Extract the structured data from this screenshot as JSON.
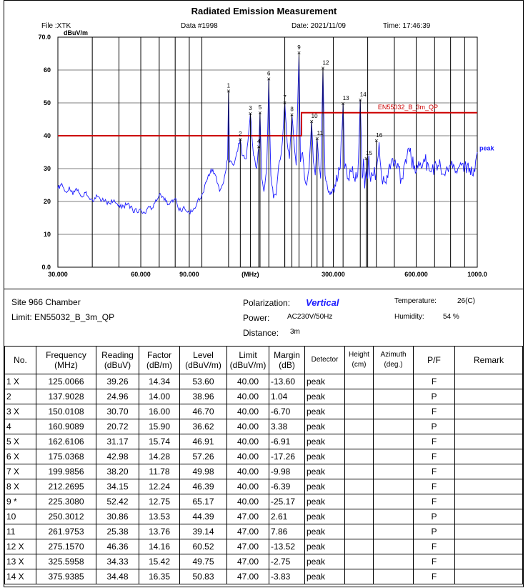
{
  "header": {
    "title": "Radiated Emission Measurement",
    "file": "File :XTK",
    "data_no": "Data #1998",
    "date": "Date: 2021/11/09",
    "time": "Time: 17:46:39"
  },
  "chart_data": {
    "type": "line",
    "ylabel": "dBuV/m",
    "xlabel": "(MHz)",
    "x_scale": "log",
    "xlim": [
      30,
      1000
    ],
    "ylim": [
      0,
      70
    ],
    "x_ticks": [
      {
        "value": 30,
        "label": "30.000"
      },
      {
        "value": 60,
        "label": "60.000"
      },
      {
        "value": 90,
        "label": "90.000"
      },
      {
        "value": 300,
        "label": "300.000"
      },
      {
        "value": 600,
        "label": "600.000"
      },
      {
        "value": 1000,
        "label": "1000.0"
      }
    ],
    "y_ticks": [
      {
        "value": 0,
        "label": "0.0"
      },
      {
        "value": 10,
        "label": "10"
      },
      {
        "value": 20,
        "label": "20"
      },
      {
        "value": 30,
        "label": "30"
      },
      {
        "value": 40,
        "label": "40"
      },
      {
        "value": 50,
        "label": "50"
      },
      {
        "value": 60,
        "label": "60"
      },
      {
        "value": 70,
        "label": "70.0"
      }
    ],
    "grid": true,
    "limit_label": "EN55032_B_3m_QP",
    "limit": [
      [
        30,
        40
      ],
      [
        230,
        40
      ],
      [
        230,
        47
      ],
      [
        1000,
        47
      ]
    ],
    "trace_label": "peak",
    "trace": [
      [
        30,
        24
      ],
      [
        31,
        25.5
      ],
      [
        32,
        23
      ],
      [
        33,
        24.5
      ],
      [
        34,
        22
      ],
      [
        35,
        24
      ],
      [
        36,
        22.5
      ],
      [
        37,
        21.5
      ],
      [
        38,
        23
      ],
      [
        39,
        21
      ],
      [
        40,
        20.5
      ],
      [
        42,
        21.5
      ],
      [
        44,
        20
      ],
      [
        46,
        19.5
      ],
      [
        48,
        20.5
      ],
      [
        50,
        19
      ],
      [
        52,
        18.5
      ],
      [
        54,
        19.5
      ],
      [
        56,
        17.5
      ],
      [
        58,
        17
      ],
      [
        60,
        17.5
      ],
      [
        62,
        16.5
      ],
      [
        64,
        18.5
      ],
      [
        66,
        18
      ],
      [
        68,
        20.5
      ],
      [
        70,
        22
      ],
      [
        72,
        21.5
      ],
      [
        74,
        20
      ],
      [
        76,
        19
      ],
      [
        78,
        20.5
      ],
      [
        80,
        21
      ],
      [
        82,
        18
      ],
      [
        84,
        17
      ],
      [
        86,
        18.5
      ],
      [
        88,
        17
      ],
      [
        90,
        16.5
      ],
      [
        93,
        17.5
      ],
      [
        96,
        19.5
      ],
      [
        100,
        22
      ],
      [
        104,
        26
      ],
      [
        108,
        30
      ],
      [
        112,
        28
      ],
      [
        116,
        23
      ],
      [
        120,
        26
      ],
      [
        124,
        33
      ],
      [
        125,
        53.6
      ],
      [
        126,
        32
      ],
      [
        130,
        31
      ],
      [
        134,
        35
      ],
      [
        137.9,
        38.96
      ],
      [
        140,
        34
      ],
      [
        145,
        33
      ],
      [
        150,
        46.7
      ],
      [
        154,
        34
      ],
      [
        158,
        30
      ],
      [
        161,
        36.62
      ],
      [
        162.6,
        46.91
      ],
      [
        165,
        27
      ],
      [
        168,
        23
      ],
      [
        172,
        30
      ],
      [
        175,
        57.26
      ],
      [
        178,
        28
      ],
      [
        182,
        21
      ],
      [
        186,
        22
      ],
      [
        190,
        31
      ],
      [
        195,
        36
      ],
      [
        200,
        49.98
      ],
      [
        204,
        38
      ],
      [
        208,
        33
      ],
      [
        212.3,
        46.39
      ],
      [
        216,
        38
      ],
      [
        220,
        31
      ],
      [
        225.3,
        65.17
      ],
      [
        228,
        32
      ],
      [
        232,
        35
      ],
      [
        236,
        27
      ],
      [
        240,
        25
      ],
      [
        245,
        30
      ],
      [
        250.3,
        44.39
      ],
      [
        254,
        32
      ],
      [
        258,
        28
      ],
      [
        262,
        39.14
      ],
      [
        266,
        31
      ],
      [
        270,
        27
      ],
      [
        275.2,
        60.52
      ],
      [
        280,
        28
      ],
      [
        286,
        24
      ],
      [
        292,
        22
      ],
      [
        300,
        24
      ],
      [
        310,
        26
      ],
      [
        318,
        30
      ],
      [
        325.6,
        49.75
      ],
      [
        330,
        30
      ],
      [
        340,
        27
      ],
      [
        350,
        29
      ],
      [
        360,
        26
      ],
      [
        368,
        28
      ],
      [
        375.9,
        50.83
      ],
      [
        382,
        27
      ],
      [
        386,
        33
      ],
      [
        390,
        24
      ],
      [
        396,
        30
      ],
      [
        400,
        27
      ],
      [
        404,
        34
      ],
      [
        410,
        26
      ],
      [
        420,
        28
      ],
      [
        430,
        29
      ],
      [
        440,
        38
      ],
      [
        450,
        27
      ],
      [
        470,
        28
      ],
      [
        500,
        32
      ],
      [
        530,
        27
      ],
      [
        560,
        36
      ],
      [
        600,
        29
      ],
      [
        640,
        33
      ],
      [
        680,
        29
      ],
      [
        720,
        31
      ],
      [
        780,
        30
      ],
      [
        850,
        30
      ],
      [
        920,
        31
      ],
      [
        980,
        29
      ],
      [
        1000,
        35
      ]
    ],
    "markers": [
      {
        "n": "1",
        "f": 125.0066,
        "level": 53.6
      },
      {
        "n": "2",
        "f": 137.9028,
        "level": 38.96
      },
      {
        "n": "3",
        "f": 150.0108,
        "level": 46.7
      },
      {
        "n": "4",
        "f": 160.9089,
        "level": 36.62
      },
      {
        "n": "5",
        "f": 162.6106,
        "level": 46.91
      },
      {
        "n": "6",
        "f": 175.0368,
        "level": 57.26
      },
      {
        "n": "7",
        "f": 199.9856,
        "level": 49.98
      },
      {
        "n": "8",
        "f": 212.2695,
        "level": 46.39
      },
      {
        "n": "9",
        "f": 225.308,
        "level": 65.17
      },
      {
        "n": "10",
        "f": 250.3012,
        "level": 44.39
      },
      {
        "n": "11",
        "f": 261.9753,
        "level": 39.14
      },
      {
        "n": "12",
        "f": 275.157,
        "level": 60.52
      },
      {
        "n": "13",
        "f": 325.5958,
        "level": 49.75
      },
      {
        "n": "14",
        "f": 375.9385,
        "level": 50.83
      },
      {
        "n": "15",
        "f": 395,
        "level": 33
      },
      {
        "n": "16",
        "f": 430,
        "level": 38.5
      }
    ],
    "colors": {
      "trace": "#1a1aff",
      "limit": "#cc0000",
      "label_blue": "#1a1aff"
    }
  },
  "info": {
    "site": "Site  966 Chamber",
    "limit": "Limit:  EN55032_B_3m_QP",
    "polarization_label": "Polarization:",
    "polarization_value": "Vertical",
    "power_label": "Power:",
    "power_value": "AC230V/50Hz",
    "distance_label": "Distance:",
    "distance_value": "3m",
    "temperature_label": "Temperature:",
    "temperature_value": "26(C)",
    "humidity_label": "Humidity:",
    "humidity_value": "54 %"
  },
  "table": {
    "headers": [
      "No.",
      "Frequency\n(MHz)",
      "Reading\n(dBuV)",
      "Factor\n(dB/m)",
      "Level\n(dBuV/m)",
      "Limit\n(dBuV/m)",
      "Margin\n(dB)",
      "Detector",
      "Height\n(cm)",
      "Azimuth\n(deg.)",
      "P/F",
      "Remark"
    ],
    "rows": [
      [
        "1  X",
        "125.0066",
        "39.26",
        "14.34",
        "53.60",
        "40.00",
        "-13.60",
        "peak",
        "",
        "",
        "F",
        ""
      ],
      [
        "2",
        "137.9028",
        "24.96",
        "14.00",
        "38.96",
        "40.00",
        "1.04",
        "peak",
        "",
        "",
        "P",
        ""
      ],
      [
        "3  X",
        "150.0108",
        "30.70",
        "16.00",
        "46.70",
        "40.00",
        "-6.70",
        "peak",
        "",
        "",
        "F",
        ""
      ],
      [
        "4",
        "160.9089",
        "20.72",
        "15.90",
        "36.62",
        "40.00",
        "3.38",
        "peak",
        "",
        "",
        "P",
        ""
      ],
      [
        "5  X",
        "162.6106",
        "31.17",
        "15.74",
        "46.91",
        "40.00",
        "-6.91",
        "peak",
        "",
        "",
        "F",
        ""
      ],
      [
        "6  X",
        "175.0368",
        "42.98",
        "14.28",
        "57.26",
        "40.00",
        "-17.26",
        "peak",
        "",
        "",
        "F",
        ""
      ],
      [
        "7  X",
        "199.9856",
        "38.20",
        "11.78",
        "49.98",
        "40.00",
        "-9.98",
        "peak",
        "",
        "",
        "F",
        ""
      ],
      [
        "8  X",
        "212.2695",
        "34.15",
        "12.24",
        "46.39",
        "40.00",
        "-6.39",
        "peak",
        "",
        "",
        "F",
        ""
      ],
      [
        "9  *",
        "225.3080",
        "52.42",
        "12.75",
        "65.17",
        "40.00",
        "-25.17",
        "peak",
        "",
        "",
        "F",
        ""
      ],
      [
        "10",
        "250.3012",
        "30.86",
        "13.53",
        "44.39",
        "47.00",
        "2.61",
        "peak",
        "",
        "",
        "P",
        ""
      ],
      [
        "11",
        "261.9753",
        "25.38",
        "13.76",
        "39.14",
        "47.00",
        "7.86",
        "peak",
        "",
        "",
        "P",
        ""
      ],
      [
        "12  X",
        "275.1570",
        "46.36",
        "14.16",
        "60.52",
        "47.00",
        "-13.52",
        "peak",
        "",
        "",
        "F",
        ""
      ],
      [
        "13  X",
        "325.5958",
        "34.33",
        "15.42",
        "49.75",
        "47.00",
        "-2.75",
        "peak",
        "",
        "",
        "F",
        ""
      ],
      [
        "14  X",
        "375.9385",
        "34.48",
        "16.35",
        "50.83",
        "47.00",
        "-3.83",
        "peak",
        "",
        "",
        "F",
        ""
      ]
    ]
  }
}
